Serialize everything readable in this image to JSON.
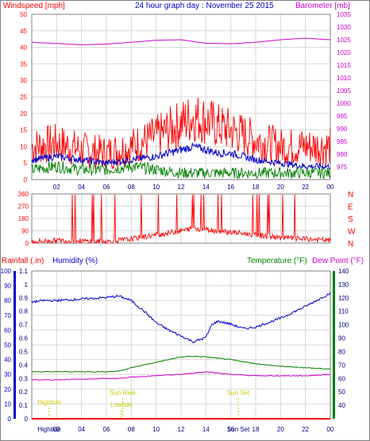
{
  "title": "24 hour graph day : November 25 2015",
  "colors": {
    "wind": "#ff0000",
    "gust": "#ff0000",
    "avg": "#0000cc",
    "green": "#008000",
    "baro": "#cc00cc",
    "humidity": "#0000cc",
    "temperature": "#008000",
    "dewpoint": "#cc00cc",
    "rain": "#ff0000",
    "event": "#c8c800",
    "axis_left": "#ff0000",
    "axis_hum": "#0000cc",
    "axis_temp": "#008000",
    "grid": "#d8d8d8"
  },
  "chart_data": [
    {
      "type": "line",
      "panel": "wind",
      "title": "24 hour graph day : November 25 2015",
      "ylabel_left": "Windspeed [mph]",
      "ylabel_right": "Barometer [mb]",
      "ylim_left": [
        0,
        50
      ],
      "ylim_right": [
        970,
        1035
      ],
      "yticks_left": [
        0,
        5,
        10,
        15,
        20,
        25,
        30,
        35,
        40,
        45,
        50
      ],
      "yticks_right": [
        975,
        980,
        985,
        990,
        995,
        1000,
        1005,
        1010,
        1015,
        1020,
        1025,
        1030,
        1035
      ],
      "x_ticks": [
        "02",
        "04",
        "06",
        "08",
        "10",
        "12",
        "14",
        "16",
        "18",
        "20",
        "22",
        "00"
      ],
      "grid": true,
      "series": [
        {
          "key": "gust",
          "color": "#ff0000",
          "x": [
            0,
            2,
            4,
            6,
            8,
            10,
            12,
            13,
            14,
            15,
            16,
            18,
            20,
            22,
            24
          ],
          "values": [
            10,
            11,
            9,
            8,
            10,
            13,
            17,
            19,
            18,
            16,
            15,
            12,
            10,
            10,
            10
          ]
        },
        {
          "key": "avg",
          "color": "#0000cc",
          "x": [
            0,
            2,
            4,
            6,
            8,
            10,
            12,
            13,
            14,
            15,
            16,
            18,
            20,
            22,
            24
          ],
          "values": [
            6,
            7,
            6,
            5,
            6,
            7,
            9,
            10,
            9,
            8,
            8,
            6,
            5,
            4,
            4
          ]
        },
        {
          "key": "green",
          "color": "#008000",
          "x": [
            0,
            2,
            4,
            6,
            8,
            10,
            12,
            13,
            14,
            15,
            16,
            18,
            20,
            22,
            24
          ],
          "values": [
            3,
            4,
            3,
            3,
            4,
            3,
            2,
            2,
            2,
            2,
            2,
            2,
            2,
            2,
            2
          ]
        },
        {
          "key": "baro",
          "axis": "right",
          "color": "#cc00cc",
          "x": [
            0,
            2,
            4,
            6,
            8,
            10,
            12,
            14,
            16,
            18,
            20,
            22,
            24
          ],
          "values": [
            1024,
            1023.5,
            1023,
            1023.3,
            1024,
            1024.8,
            1025,
            1023.6,
            1023.4,
            1024,
            1025,
            1025.6,
            1025
          ]
        }
      ]
    },
    {
      "type": "line",
      "panel": "wind_direction",
      "ylim": [
        0,
        360
      ],
      "yticks": [
        0,
        90,
        180,
        270,
        360
      ],
      "right_labels": [
        "N",
        "W",
        "S",
        "E",
        "N"
      ],
      "x_ticks": [
        "02",
        "04",
        "06",
        "08",
        "10",
        "12",
        "14",
        "16",
        "18",
        "20",
        "22",
        "00"
      ],
      "grid": true,
      "series": [
        {
          "key": "direction",
          "color": "#ff0000",
          "x": [
            0,
            2,
            4,
            6,
            8,
            10,
            12,
            13,
            14,
            16,
            18,
            20,
            22,
            24
          ],
          "values": [
            10,
            20,
            15,
            10,
            30,
            60,
            90,
            110,
            100,
            80,
            60,
            40,
            30,
            20
          ]
        }
      ]
    },
    {
      "type": "line",
      "panel": "humidity_temperature",
      "labels": {
        "rainfall": "Rainfall (.in)",
        "humidity": "Humidity (%)",
        "temperature": "Temperature (°F)",
        "dewpoint": "Dew Point (°F)"
      },
      "ylim_humidity": [
        0,
        100
      ],
      "yticks_humidity": [
        0,
        10,
        20,
        30,
        40,
        50,
        60,
        70,
        80,
        90,
        100
      ],
      "ylim_rain": [
        0,
        1.1
      ],
      "yticks_rain": [
        0,
        0.1,
        0.2,
        0.3,
        0.4,
        0.5,
        0.6,
        0.7,
        0.8,
        0.9,
        1,
        1.1
      ],
      "ylim_temp": [
        30,
        140
      ],
      "yticks_temp": [
        40,
        50,
        60,
        70,
        80,
        90,
        100,
        110,
        120,
        130,
        140
      ],
      "x_ticks": [
        "02",
        "04",
        "06",
        "08",
        "10",
        "12",
        "14",
        "16",
        "18",
        "20",
        "22",
        "00"
      ],
      "grid": true,
      "series": [
        {
          "key": "humidity",
          "axis": "humidity",
          "color": "#0000cc",
          "x": [
            0,
            1,
            2,
            4,
            6,
            7,
            8,
            9,
            10,
            11,
            12,
            13,
            14,
            14.5,
            15,
            16,
            17,
            18,
            20,
            22,
            24
          ],
          "values": [
            79,
            80,
            80,
            81,
            82,
            83,
            80,
            73,
            65,
            60,
            56,
            52,
            55,
            64,
            66,
            64,
            61,
            62,
            68,
            76,
            85
          ]
        },
        {
          "key": "temperature",
          "axis": "temp",
          "color": "#008000",
          "x": [
            0,
            2,
            4,
            6,
            7,
            8,
            10,
            12,
            13,
            14,
            16,
            18,
            20,
            22,
            24
          ],
          "values": [
            65,
            65,
            65,
            65,
            65.5,
            68,
            72,
            76,
            76.5,
            76,
            74,
            71,
            69,
            68,
            67
          ]
        },
        {
          "key": "dewpoint",
          "axis": "temp",
          "color": "#cc00cc",
          "x": [
            0,
            2,
            4,
            6,
            7,
            8,
            10,
            12,
            13,
            14,
            16,
            18,
            20,
            22,
            24
          ],
          "values": [
            59,
            59,
            59.5,
            60,
            60,
            61,
            62,
            63,
            64,
            65,
            63,
            62,
            62,
            62,
            63
          ]
        },
        {
          "key": "rain",
          "axis": "rain",
          "color": "#ff0000",
          "x": [
            0,
            24
          ],
          "values": [
            0,
            0
          ]
        }
      ],
      "events": [
        {
          "label": "Hightide",
          "hour": 1.4,
          "row": 0
        },
        {
          "label": "Lowtide",
          "hour": 7.2,
          "row": 1
        },
        {
          "label": "Sun Rise",
          "hour": 7.3,
          "row": 2
        },
        {
          "label": "Sun Set",
          "hour": 16.6,
          "row": 2
        }
      ],
      "bottom_tick_labels": [
        {
          "label": "Hightide",
          "hour": 1.4
        },
        {
          "label": "Sun Set",
          "hour": 16.6
        }
      ]
    }
  ]
}
